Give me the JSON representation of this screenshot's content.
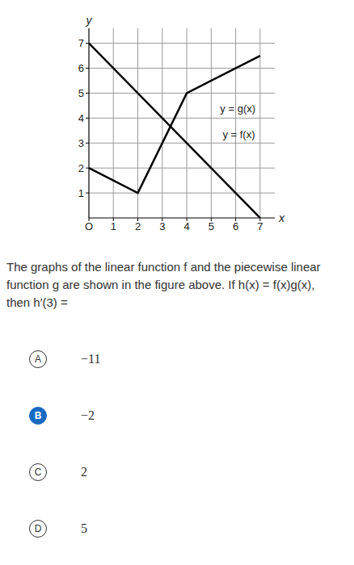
{
  "chart_data": {
    "type": "line",
    "x_label": "x",
    "y_label": "y",
    "xlim": [
      0,
      7.6
    ],
    "ylim": [
      0,
      7.6
    ],
    "xticks": [
      {
        "value": 0,
        "label": "O"
      },
      1,
      2,
      3,
      4,
      5,
      6,
      7
    ],
    "yticks": [
      1,
      2,
      3,
      4,
      5,
      6,
      7
    ],
    "grid": true,
    "series": [
      {
        "name": "y = f(x)",
        "color": "#000000",
        "x": [
          0,
          7
        ],
        "values": [
          7,
          0
        ],
        "label_at": [
          5.3,
          3.35
        ]
      },
      {
        "name": "y = g(x)",
        "color": "#000000",
        "x": [
          0,
          2,
          4,
          7
        ],
        "values": [
          2,
          1,
          5,
          6.5
        ],
        "label_at": [
          5.2,
          4.4
        ]
      }
    ]
  },
  "question": "The graphs of the linear function f and the piecewise linear function g are shown in the figure above. If h(x) = f(x)g(x), then h′(3) =",
  "choices": [
    {
      "letter": "A",
      "text": "−11"
    },
    {
      "letter": "B",
      "text": "−2"
    },
    {
      "letter": "C",
      "text": "2"
    },
    {
      "letter": "D",
      "text": "5"
    }
  ],
  "selected": "B"
}
